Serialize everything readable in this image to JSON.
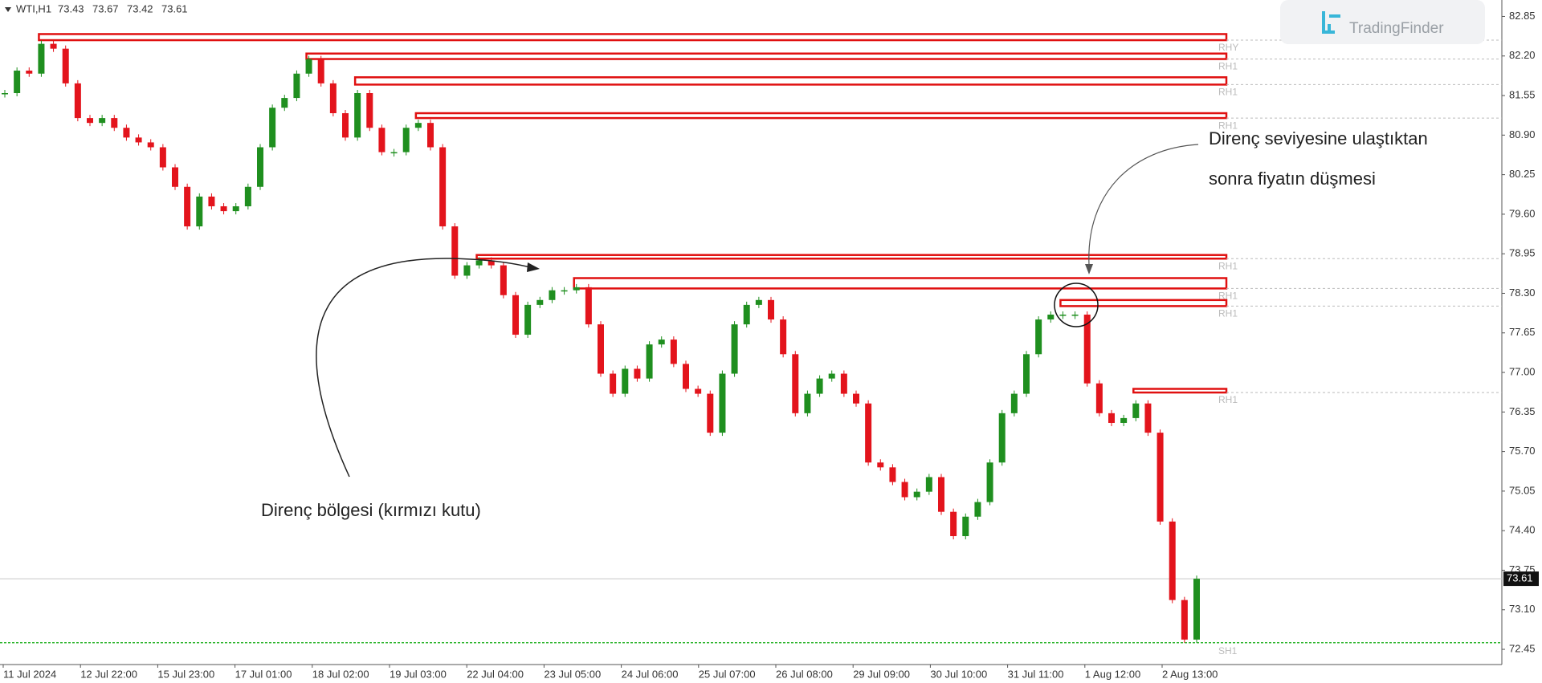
{
  "header": {
    "symbol": "WTI,H1",
    "open": 73.43,
    "high": 73.67,
    "low": 73.42,
    "close": 73.61
  },
  "watermark": "TradingFinder",
  "chart_data": {
    "type": "candlestick",
    "values": [
      81.59,
      81.96,
      81.91,
      82.4,
      82.32,
      81.75,
      81.18,
      81.1,
      81.18,
      81.02,
      80.86,
      80.78,
      80.7,
      80.37,
      80.05,
      79.4,
      79.89,
      79.73,
      79.65,
      79.73,
      80.05,
      80.7,
      81.35,
      81.51,
      81.91,
      82.15,
      81.75,
      81.26,
      80.86,
      81.59,
      81.02,
      80.62,
      80.62,
      81.02,
      81.1,
      80.7,
      79.4,
      78.59,
      78.76,
      78.84,
      78.76,
      78.27,
      77.62,
      78.11,
      78.19,
      78.35,
      78.35,
      78.4,
      77.79,
      76.98,
      76.65,
      77.06,
      76.9,
      77.46,
      77.54,
      77.14,
      76.73,
      76.65,
      76.01,
      76.98,
      77.79,
      78.11,
      78.19,
      77.87,
      77.3,
      76.33,
      76.65,
      76.9,
      76.98,
      76.65,
      76.49,
      75.52,
      75.44,
      75.2,
      74.95,
      75.04,
      75.28,
      74.71,
      74.31,
      74.63,
      74.87,
      75.52,
      76.33,
      76.65,
      77.3,
      77.87,
      77.95,
      77.95,
      77.95,
      76.82,
      76.33,
      76.17,
      76.25,
      76.49,
      76.01,
      74.55,
      73.26,
      72.61,
      73.61
    ],
    "colors": {
      "up": "#1f8f1f",
      "down": "#e3141c"
    },
    "ylim": [
      72.2,
      83.12
    ],
    "yticks": [
      82.85,
      {
        "value": 82.2,
        "label": "82.20"
      },
      81.55,
      {
        "value": 80.9,
        "label": "80.90"
      },
      80.25,
      {
        "value": 79.6,
        "label": "79.60"
      },
      78.95,
      {
        "value": 78.3,
        "label": "78.30"
      },
      77.65,
      {
        "value": 77.0,
        "label": "77.00"
      },
      76.35,
      {
        "value": 75.7,
        "label": "75.70"
      },
      75.05,
      {
        "value": 74.4,
        "label": "74.40"
      },
      73.75,
      {
        "value": 73.1,
        "label": "73.10"
      },
      72.45
    ],
    "x_labels": [
      "11 Jul 2024",
      "12 Jul 22:00",
      "15 Jul 23:00",
      "17 Jul 01:00",
      "18 Jul 02:00",
      "19 Jul 03:00",
      "22 Jul 04:00",
      "23 Jul 05:00",
      "24 Jul 06:00",
      "25 Jul 07:00",
      "26 Jul 08:00",
      "29 Jul 09:00",
      "30 Jul 10:00",
      "31 Jul 11:00",
      "1 Aug 12:00",
      "2 Aug 13:00"
    ],
    "last_price": 73.61,
    "zones": [
      {
        "label": "RHY",
        "top": 82.56,
        "bottom": 82.46,
        "start": 3,
        "color": "#e01010"
      },
      {
        "label": "RH1",
        "top": 82.24,
        "bottom": 82.15,
        "start": 25,
        "color": "#e01010"
      },
      {
        "label": "RH1",
        "top": 81.85,
        "bottom": 81.73,
        "start": 29,
        "color": "#e01010"
      },
      {
        "label": "RH1",
        "top": 81.26,
        "bottom": 81.18,
        "start": 34,
        "color": "#e01010"
      },
      {
        "label": "RH1",
        "top": 78.93,
        "bottom": 78.87,
        "start": 39,
        "color": "#e01010"
      },
      {
        "label": "RH1",
        "top": 78.55,
        "bottom": 78.38,
        "start": 47,
        "color": "#e01010"
      },
      {
        "label": "RH1",
        "top": 78.19,
        "bottom": 78.09,
        "start": 87,
        "color": "#e01010"
      },
      {
        "label": "RH1",
        "top": 76.73,
        "bottom": 76.67,
        "start": 93,
        "color": "#e01010"
      }
    ],
    "support": {
      "label": "SH1",
      "value": 72.56,
      "color": "#2db52d"
    },
    "annotations": [
      "Direnç bölgesi (kırmızı kutu)",
      "Direnç seviyesine ulaştıktan",
      "sonra fiyatın düşmesi"
    ]
  }
}
